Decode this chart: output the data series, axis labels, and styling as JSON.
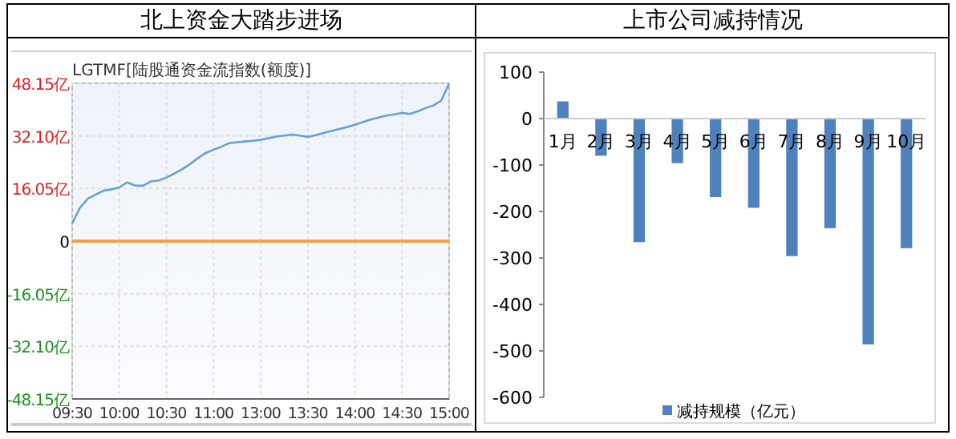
{
  "chart_data": [
    {
      "type": "line",
      "title": "北上资金大踏步进场",
      "subtitle": "LGTMF[陆股通资金流指数(额度)]",
      "categories": [
        "09:30",
        null,
        null,
        null,
        null,
        null,
        "10:00",
        null,
        null,
        null,
        null,
        null,
        "10:30",
        null,
        null,
        null,
        null,
        null,
        "11:00",
        null,
        null,
        null,
        null,
        null,
        "13:00",
        null,
        null,
        null,
        null,
        null,
        "13:30",
        null,
        null,
        null,
        null,
        null,
        "14:00",
        null,
        null,
        null,
        null,
        null,
        "14:30",
        null,
        null,
        null,
        null,
        null,
        "15:00"
      ],
      "ylim": [
        -48.15,
        48.15
      ],
      "yticks": [
        {
          "value": 48.15,
          "label": "48.15亿"
        },
        {
          "value": 32.1,
          "label": "32.10亿"
        },
        {
          "value": 16.05,
          "label": "16.05亿"
        },
        0,
        {
          "value": -16.05,
          "label": "-16.05亿"
        },
        {
          "value": -32.1,
          "label": "-32.10亿"
        },
        {
          "value": -48.15,
          "label": "-48.15亿"
        }
      ],
      "grid": true,
      "series": [
        {
          "color": "#6a9fd4",
          "values": [
            5.4,
            10.2,
            13.0,
            14.2,
            15.4,
            15.8,
            16.4,
            17.9,
            17.0,
            16.9,
            18.2,
            18.5,
            19.4,
            20.6,
            21.9,
            23.5,
            25.3,
            26.9,
            27.9,
            28.8,
            29.9,
            30.2,
            30.4,
            30.6,
            30.9,
            31.4,
            31.9,
            32.2,
            32.5,
            32.2,
            31.8,
            32.3,
            33.0,
            33.6,
            34.2,
            34.8,
            35.5,
            36.3,
            37.1,
            37.7,
            38.3,
            38.7,
            39.1,
            38.8,
            39.6,
            40.6,
            41.4,
            42.9,
            48.1
          ]
        }
      ],
      "ref_lines": [
        {
          "axis": "y",
          "value": 0,
          "color": "#f0a050"
        }
      ]
    },
    {
      "type": "bar",
      "title": "上市公司减持情况",
      "categories": [
        "1月",
        "2月",
        "3月",
        "4月",
        "5月",
        "6月",
        "7月",
        "8月",
        "9月",
        "10月"
      ],
      "ylim": [
        -600,
        100
      ],
      "yticks": [
        -600,
        -500,
        -400,
        -300,
        -200,
        -100,
        0,
        100
      ],
      "legend": "bottom",
      "series": [
        {
          "name": "减持规模（亿元）",
          "color": "#4f81bd",
          "values": [
            37,
            -80,
            -266,
            -96,
            -169,
            -192,
            -296,
            -236,
            -486,
            -279
          ]
        }
      ]
    }
  ]
}
